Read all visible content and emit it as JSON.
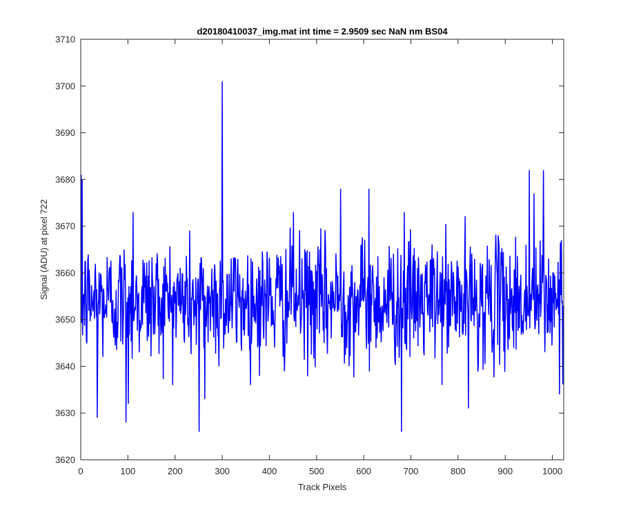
{
  "chart_data": {
    "type": "line",
    "title": "d20180410037_img.mat int time = 2.9509 sec  NaN nm BS04",
    "xlabel": "Track Pixels",
    "ylabel": "Signal (ADU) at pixel 722",
    "xlim": [
      0,
      1024
    ],
    "ylim": [
      3620,
      3710
    ],
    "xticks": [
      0,
      100,
      200,
      300,
      400,
      500,
      600,
      700,
      800,
      900,
      1000
    ],
    "yticks": [
      3620,
      3630,
      3640,
      3650,
      3660,
      3670,
      3680,
      3690,
      3700,
      3710
    ],
    "grid": false,
    "legend": "none",
    "series": [
      {
        "color": "#0000ff",
        "n_points": 1024,
        "baseline": 3654,
        "noise_std": 6.5,
        "features": [
          {
            "x": 0,
            "y": 3681
          },
          {
            "x": 2,
            "y": 3680
          },
          {
            "x": 34,
            "y": 3629
          },
          {
            "x": 95,
            "y": 3628
          },
          {
            "x": 100,
            "y": 3632
          },
          {
            "x": 110,
            "y": 3673
          },
          {
            "x": 250,
            "y": 3626
          },
          {
            "x": 262,
            "y": 3633
          },
          {
            "x": 299,
            "y": 3701
          },
          {
            "x": 450,
            "y": 3673
          },
          {
            "x": 550,
            "y": 3678
          },
          {
            "x": 610,
            "y": 3678
          },
          {
            "x": 679,
            "y": 3626
          },
          {
            "x": 685,
            "y": 3673
          },
          {
            "x": 821,
            "y": 3631
          },
          {
            "x": 950,
            "y": 3682
          },
          {
            "x": 960,
            "y": 3677
          },
          {
            "x": 980,
            "y": 3682
          },
          {
            "x": 1014,
            "y": 3634
          },
          {
            "x": 1018,
            "y": 3667
          }
        ]
      }
    ]
  }
}
